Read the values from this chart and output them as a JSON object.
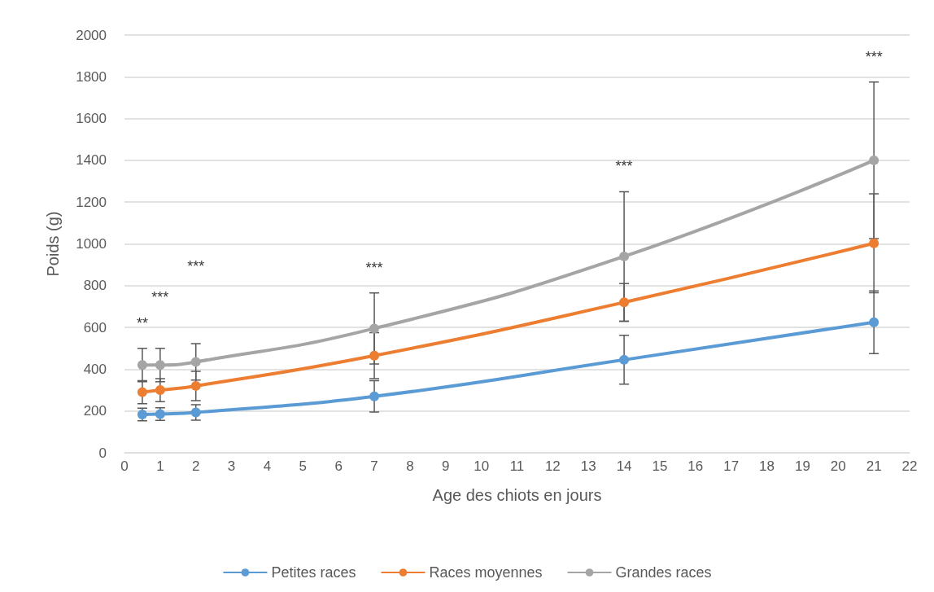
{
  "chart_data": {
    "type": "line",
    "xlabel": "Age des chiots en jours",
    "ylabel": "Poids (g)",
    "x": [
      0.5,
      1,
      2,
      7,
      14,
      21
    ],
    "series": [
      {
        "name": "Petites races",
        "color": "#5b9bd5",
        "values": [
          183,
          185,
          193,
          270,
          445,
          625
        ],
        "errors": [
          30,
          30,
          37,
          75,
          117,
          150
        ]
      },
      {
        "name": "Races moyennes",
        "color": "#ed7d31",
        "values": [
          290,
          300,
          320,
          465,
          720,
          1003
        ],
        "errors": [
          55,
          55,
          70,
          110,
          90,
          237
        ]
      },
      {
        "name": "Grandes races",
        "color": "#a5a5a5",
        "values": [
          420,
          420,
          435,
          595,
          940,
          1400
        ],
        "errors": [
          80,
          80,
          87,
          170,
          310,
          375
        ]
      }
    ],
    "xlim": [
      0,
      22
    ],
    "xticks": [
      0,
      1,
      2,
      3,
      4,
      5,
      6,
      7,
      8,
      9,
      10,
      11,
      12,
      13,
      14,
      15,
      16,
      17,
      18,
      19,
      20,
      21,
      22
    ],
    "ylim": [
      0,
      2000
    ],
    "yticks": [
      0,
      200,
      400,
      600,
      800,
      1000,
      1200,
      1400,
      1600,
      1800,
      2000
    ],
    "annotations": [
      "**",
      "***",
      "***",
      "***",
      "***",
      "***"
    ],
    "grid": "y",
    "legend": "bottom",
    "marker": "circle",
    "line_style": "solid"
  }
}
